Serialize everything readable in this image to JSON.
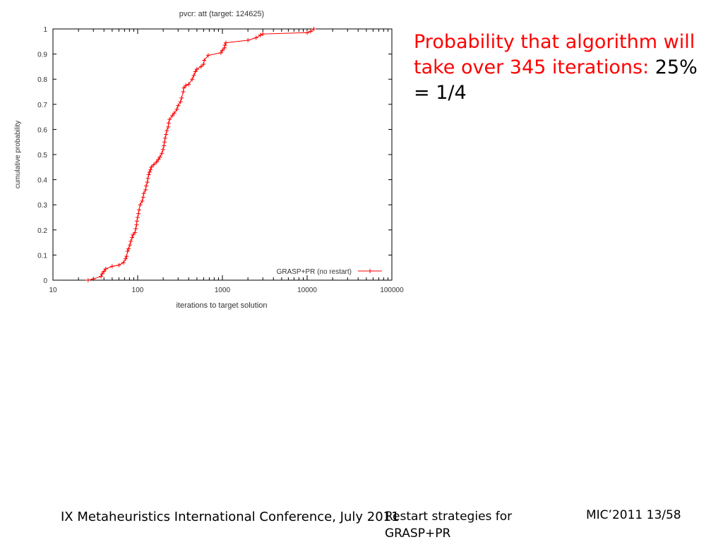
{
  "chart_data": {
    "type": "line",
    "title": "pvcr: att (target: 124625)",
    "xlabel": "iterations to target solution",
    "ylabel": "cumulative probability",
    "xscale": "log",
    "xlim": [
      10,
      100000
    ],
    "ylim": [
      0,
      1
    ],
    "x_ticks": [
      "10",
      "100",
      "1000",
      "10000",
      "100000"
    ],
    "x_tick_values": [
      10,
      100,
      1000,
      10000,
      100000
    ],
    "y_ticks": [
      "0",
      "0.1",
      "0.2",
      "0.3",
      "0.4",
      "0.5",
      "0.6",
      "0.7",
      "0.8",
      "0.9",
      "1"
    ],
    "y_tick_values": [
      0,
      0.1,
      0.2,
      0.3,
      0.4,
      0.5,
      0.6,
      0.7,
      0.8,
      0.9,
      1
    ],
    "grid": false,
    "legend_position": "bottom-right",
    "series": [
      {
        "name": "GRASP+PR (no restart)",
        "color": "#ff0000",
        "marker": "plus",
        "x": [
          26,
          30,
          37,
          38,
          40,
          42,
          50,
          60,
          68,
          72,
          74,
          76,
          78,
          81,
          83,
          86,
          88,
          93,
          95,
          97,
          98,
          100,
          102,
          104,
          107,
          113,
          116,
          118,
          124,
          126,
          130,
          132,
          135,
          138,
          142,
          145,
          155,
          167,
          175,
          183,
          193,
          199,
          204,
          207,
          211,
          216,
          221,
          229,
          232,
          238,
          256,
          270,
          290,
          300,
          320,
          330,
          345,
          350,
          370,
          400,
          440,
          460,
          480,
          500,
          560,
          600,
          610,
          680,
          960,
          1000,
          1060,
          1070,
          1100,
          2000,
          2500,
          2800,
          3000,
          10000,
          11000,
          12000
        ],
        "y": [
          0.0,
          0.005,
          0.015,
          0.025,
          0.035,
          0.045,
          0.055,
          0.06,
          0.07,
          0.085,
          0.095,
          0.115,
          0.125,
          0.14,
          0.155,
          0.17,
          0.18,
          0.19,
          0.205,
          0.22,
          0.235,
          0.25,
          0.265,
          0.28,
          0.3,
          0.315,
          0.33,
          0.345,
          0.36,
          0.375,
          0.39,
          0.405,
          0.42,
          0.43,
          0.44,
          0.45,
          0.46,
          0.47,
          0.48,
          0.49,
          0.505,
          0.52,
          0.535,
          0.55,
          0.565,
          0.58,
          0.595,
          0.61,
          0.625,
          0.64,
          0.655,
          0.665,
          0.68,
          0.695,
          0.71,
          0.725,
          0.75,
          0.765,
          0.775,
          0.78,
          0.8,
          0.815,
          0.83,
          0.84,
          0.85,
          0.86,
          0.875,
          0.895,
          0.905,
          0.915,
          0.925,
          0.935,
          0.945,
          0.955,
          0.965,
          0.975,
          0.98,
          0.985,
          0.99,
          1.0
        ]
      }
    ]
  },
  "annotation": {
    "red_text": "Probability that algorithm will take over 345 iterations: ",
    "black_text": "25% = 1/4",
    "red_color": "#ff0000",
    "black_color": "#000000"
  },
  "footer": {
    "left": "IX Metaheuristics International Conference, July 2011",
    "middle": "Restart strategies for GRASP+PR",
    "right": "MIC’2011 13/58"
  }
}
